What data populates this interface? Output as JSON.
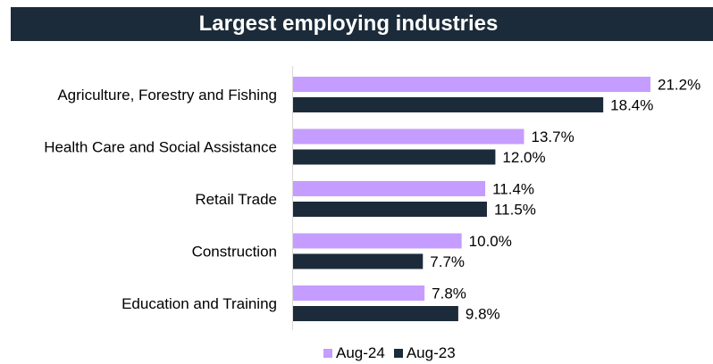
{
  "chart_data": {
    "type": "bar",
    "orientation": "horizontal",
    "title": "Largest employing industries",
    "categories": [
      "Agriculture, Forestry and Fishing",
      "Health Care and Social Assistance",
      "Retail Trade",
      "Construction",
      "Education and Training"
    ],
    "series": [
      {
        "name": "Aug-24",
        "color": "#c59cff",
        "values": [
          21.2,
          13.7,
          11.4,
          10.0,
          7.8
        ],
        "labels": [
          "21.2%",
          "13.7%",
          "11.4%",
          "10.0%",
          "7.8%"
        ]
      },
      {
        "name": "Aug-23",
        "color": "#1c2b39",
        "values": [
          18.4,
          12.0,
          11.5,
          7.7,
          9.8
        ],
        "labels": [
          "18.4%",
          "12.0%",
          "11.5%",
          "7.7%",
          "9.8%"
        ]
      }
    ],
    "xlim": [
      0,
      24
    ],
    "grid": false,
    "legend_position": "bottom-center"
  },
  "colors": {
    "title_background": "#1c2b39",
    "title_text": "#ffffff"
  }
}
